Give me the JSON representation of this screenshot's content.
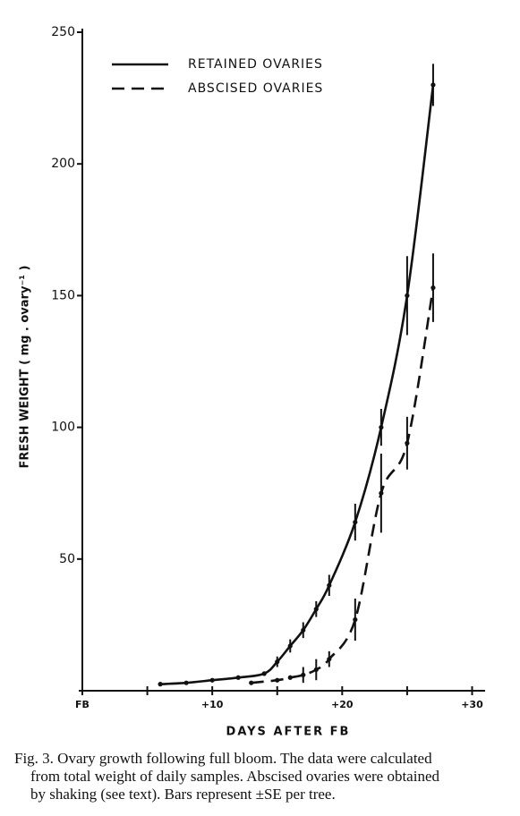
{
  "chart_data": {
    "type": "line",
    "y_label": "FRESH WEIGHT ( mg . ovary⁻¹ )",
    "x_label": "DAYS AFTER FB",
    "xlim": [
      0,
      31
    ],
    "ylim": [
      0,
      250
    ],
    "xticks": [
      {
        "value": 0,
        "label": "FB"
      },
      {
        "value": 10,
        "label": "+10"
      },
      {
        "value": 20,
        "label": "+20"
      },
      {
        "value": 30,
        "label": "+30"
      }
    ],
    "xminor_ticks": [
      5,
      15,
      25
    ],
    "yticks": [
      50,
      100,
      150,
      200,
      250
    ],
    "legend": "top-left",
    "series": [
      {
        "name": "RETAINED OVARIES",
        "color": "#111111",
        "dash": "solid",
        "x": [
          6,
          8,
          10,
          12,
          14,
          15,
          16,
          17,
          18,
          19,
          21,
          23,
          25,
          27
        ],
        "values": [
          2.5,
          3,
          4,
          5,
          6.5,
          11,
          17,
          23,
          31,
          40,
          64,
          100,
          150,
          230
        ],
        "errors": [
          null,
          null,
          null,
          null,
          null,
          2,
          2.5,
          3,
          3,
          4,
          7,
          7,
          15,
          8
        ]
      },
      {
        "name": "ABSCISED OVARIES",
        "color": "#111111",
        "dash": "dashed",
        "x": [
          13,
          15,
          16,
          17,
          18,
          19,
          21,
          23,
          25,
          27
        ],
        "values": [
          3,
          4,
          5,
          6,
          8,
          12,
          27,
          75,
          94,
          153
        ],
        "errors": [
          null,
          null,
          null,
          3,
          4,
          3,
          8,
          15,
          10,
          13
        ]
      }
    ]
  },
  "caption": {
    "lines": [
      "Fig. 3. Ovary growth following full bloom. The data were calculated",
      "from total weight of daily samples. Abscised ovaries were obtained",
      "by shaking (see text). Bars represent ±SE per tree."
    ]
  }
}
